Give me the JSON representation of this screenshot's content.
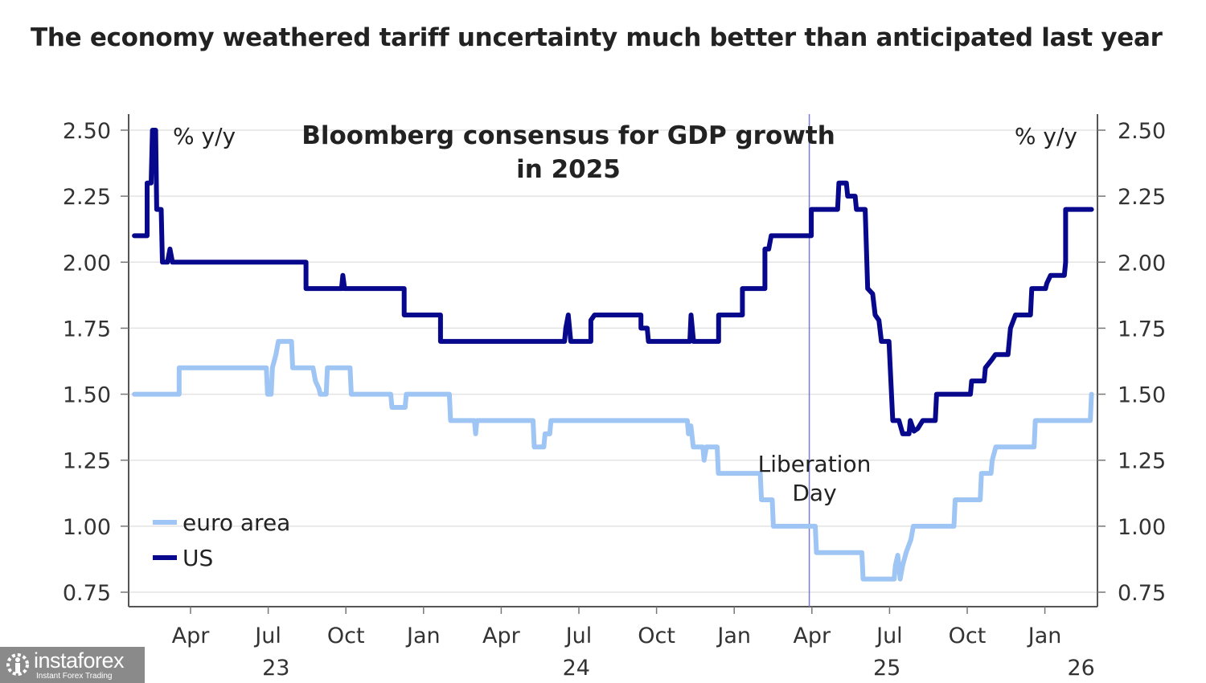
{
  "headline": "The economy weathered tariff uncertainty much better than anticipated last year",
  "watermark": {
    "brand": "instaforex",
    "tagline": "Instant Forex Trading",
    "icon": "gear-figure-icon"
  },
  "chart_data": {
    "type": "line",
    "step": true,
    "title": "Bloomberg consensus for GDP growth in 2025",
    "ylabel_left": "% y/y",
    "ylabel_right": "% y/y",
    "ylim": [
      0.75,
      2.5
    ],
    "yticks": [
      0.75,
      1.0,
      1.25,
      1.5,
      1.75,
      2.0,
      2.25,
      2.5
    ],
    "ytick_labels": [
      "0.75",
      "1.00",
      "1.25",
      "1.50",
      "1.75",
      "2.00",
      "2.25",
      "2.50"
    ],
    "x_units": "months since Jan 2023",
    "xlim": [
      0.6,
      38.1
    ],
    "xticks": [
      3,
      6,
      9,
      12,
      15,
      18,
      21,
      24,
      27,
      30,
      33,
      36
    ],
    "xtick_labels": [
      "Apr",
      "Jul",
      "Oct",
      "Jan",
      "Apr",
      "Jul",
      "Oct",
      "Jan",
      "Apr",
      "Jul",
      "Oct",
      "Jan"
    ],
    "year_labels": [
      {
        "x": 6.3,
        "label": "23"
      },
      {
        "x": 17.9,
        "label": "24"
      },
      {
        "x": 29.9,
        "label": "25"
      },
      {
        "x": 37.4,
        "label": "26"
      }
    ],
    "grid": true,
    "legend": {
      "position": "bottom-left",
      "entries": [
        {
          "name": "euro area",
          "color": "#9ec5f4"
        },
        {
          "name": "US",
          "color": "#08088c"
        }
      ]
    },
    "annotations": [
      {
        "type": "vline",
        "x": 26.9,
        "label": "Liberation Day",
        "label_lines": [
          "Liberation",
          "Day"
        ],
        "color": "#7b7bd0"
      }
    ],
    "series": [
      {
        "name": "US",
        "color": "#08088c",
        "points": [
          [
            0.83,
            2.1
          ],
          [
            1.34,
            2.1
          ],
          [
            1.34,
            2.3
          ],
          [
            1.5,
            2.3
          ],
          [
            1.55,
            2.5
          ],
          [
            1.68,
            2.5
          ],
          [
            1.72,
            2.2
          ],
          [
            1.9,
            2.2
          ],
          [
            1.95,
            2.0
          ],
          [
            2.15,
            2.0
          ],
          [
            2.25,
            2.05
          ],
          [
            2.35,
            2.0
          ],
          [
            7.68,
            2.0
          ],
          [
            7.68,
            1.9
          ],
          [
            9.1,
            1.9
          ],
          [
            9.15,
            1.95
          ],
          [
            9.22,
            1.9
          ],
          [
            11.6,
            1.9
          ],
          [
            11.6,
            1.8
          ],
          [
            13.05,
            1.8
          ],
          [
            13.05,
            1.7
          ],
          [
            18.0,
            1.7
          ],
          [
            18.05,
            1.75
          ],
          [
            18.15,
            1.8
          ],
          [
            18.25,
            1.7
          ],
          [
            19.05,
            1.7
          ],
          [
            19.05,
            1.78
          ],
          [
            19.2,
            1.8
          ],
          [
            21.05,
            1.8
          ],
          [
            21.05,
            1.75
          ],
          [
            21.3,
            1.75
          ],
          [
            21.35,
            1.7
          ],
          [
            23.0,
            1.7
          ],
          [
            23.05,
            1.8
          ],
          [
            23.15,
            1.7
          ],
          [
            24.15,
            1.7
          ],
          [
            24.15,
            1.8
          ],
          [
            25.1,
            1.8
          ],
          [
            25.1,
            1.9
          ],
          [
            26.0,
            1.9
          ],
          [
            26.0,
            2.05
          ],
          [
            26.15,
            2.05
          ],
          [
            26.25,
            2.1
          ],
          [
            27.85,
            2.1
          ],
          [
            27.85,
            2.2
          ],
          [
            28.9,
            2.2
          ],
          [
            28.95,
            2.3
          ],
          [
            29.25,
            2.3
          ],
          [
            29.3,
            2.25
          ],
          [
            29.6,
            2.25
          ],
          [
            29.65,
            2.2
          ],
          [
            30.0,
            2.2
          ],
          [
            30.1,
            1.9
          ],
          [
            30.3,
            1.88
          ],
          [
            30.4,
            1.8
          ],
          [
            30.55,
            1.78
          ],
          [
            30.65,
            1.7
          ],
          [
            30.95,
            1.7
          ],
          [
            31.1,
            1.4
          ],
          [
            31.35,
            1.4
          ],
          [
            31.5,
            1.35
          ],
          [
            31.75,
            1.35
          ],
          [
            31.8,
            1.4
          ],
          [
            31.95,
            1.36
          ],
          [
            32.1,
            1.37
          ],
          [
            32.3,
            1.4
          ],
          [
            32.8,
            1.4
          ],
          [
            32.85,
            1.5
          ],
          [
            34.2,
            1.5
          ],
          [
            34.25,
            1.55
          ],
          [
            34.75,
            1.55
          ],
          [
            34.8,
            1.6
          ],
          [
            35.05,
            1.63
          ],
          [
            35.2,
            1.65
          ],
          [
            35.7,
            1.65
          ],
          [
            35.8,
            1.75
          ],
          [
            36.0,
            1.8
          ],
          [
            36.6,
            1.8
          ],
          [
            36.65,
            1.9
          ],
          [
            37.2,
            1.9
          ],
          [
            37.25,
            1.92
          ],
          [
            37.4,
            1.95
          ],
          [
            37.95,
            1.95
          ],
          [
            38.0,
            2.0
          ]
        ]
      },
      {
        "name": "euro area",
        "color": "#9ec5f4",
        "points": []
      }
    ]
  }
}
